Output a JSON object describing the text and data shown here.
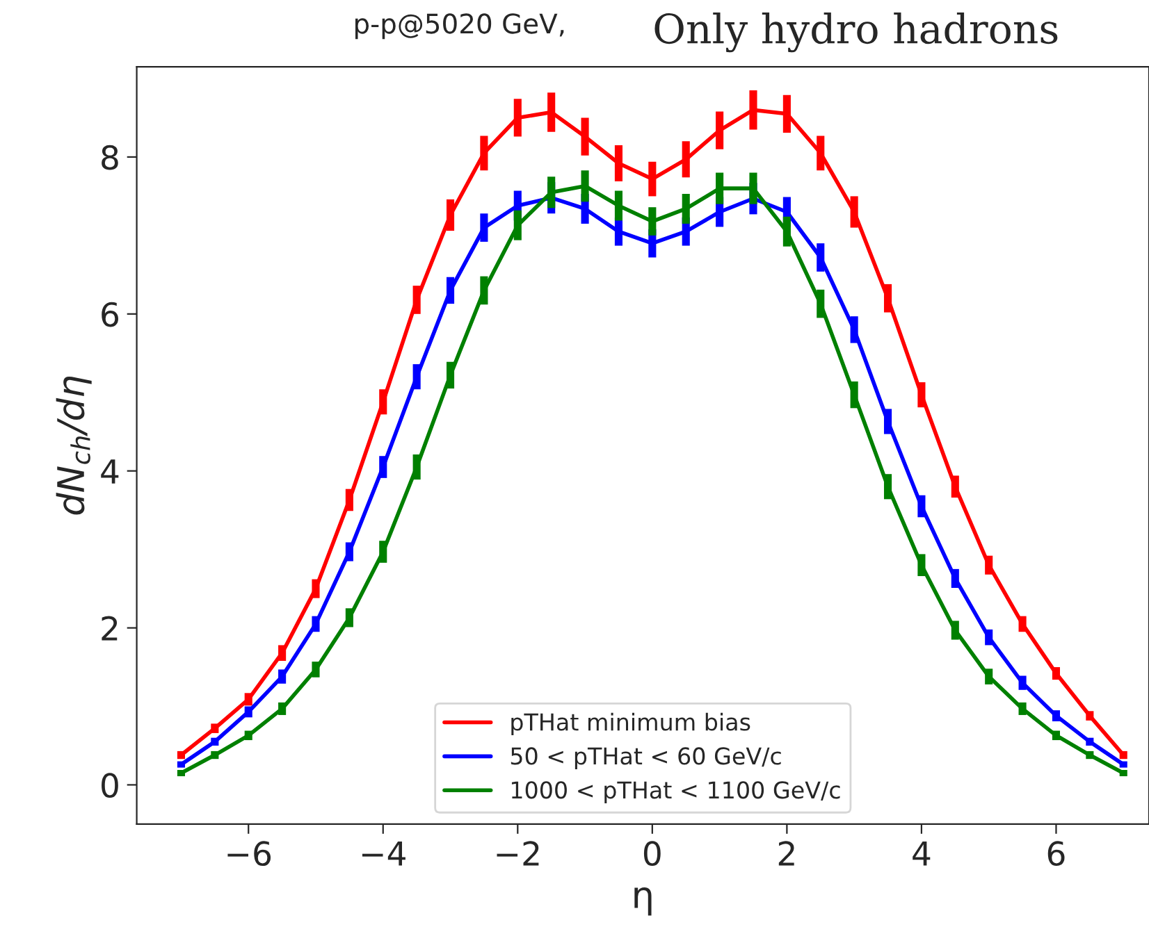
{
  "chart_data": {
    "type": "line",
    "title": "p-p@5020 GeV,",
    "annotations": [
      "Only hydro hadrons"
    ],
    "xlabel": "η",
    "ylabel": "dN$_{ch}$/dη",
    "x": [
      -7,
      -6.5,
      -6,
      -5.5,
      -5,
      -4.5,
      -4,
      -3.5,
      -3,
      -2.5,
      -2,
      -1.5,
      -1,
      -0.5,
      0,
      0.5,
      1,
      1.5,
      2,
      2.5,
      3,
      3.5,
      4,
      4.5,
      5,
      5.5,
      6,
      6.5,
      7
    ],
    "series": [
      {
        "name": "pTHat minimum bias",
        "color": "#ff0000",
        "values": [
          0.38,
          0.72,
          1.09,
          1.68,
          2.5,
          3.63,
          4.88,
          6.18,
          7.26,
          8.05,
          8.5,
          8.57,
          8.26,
          7.92,
          7.72,
          7.97,
          8.34,
          8.6,
          8.55,
          8.05,
          7.3,
          6.2,
          4.97,
          3.8,
          2.8,
          2.05,
          1.42,
          0.88,
          0.38
        ],
        "errors": [
          0.05,
          0.06,
          0.08,
          0.1,
          0.12,
          0.14,
          0.16,
          0.18,
          0.2,
          0.22,
          0.24,
          0.25,
          0.24,
          0.23,
          0.22,
          0.23,
          0.24,
          0.25,
          0.24,
          0.22,
          0.2,
          0.18,
          0.16,
          0.14,
          0.12,
          0.1,
          0.08,
          0.06,
          0.05
        ]
      },
      {
        "name": "50 < pTHat < 60 GeV/c",
        "color": "#0000ff",
        "values": [
          0.26,
          0.55,
          0.93,
          1.38,
          2.05,
          2.97,
          4.05,
          5.2,
          6.3,
          7.1,
          7.38,
          7.48,
          7.34,
          7.05,
          6.9,
          7.05,
          7.3,
          7.47,
          7.3,
          6.72,
          5.8,
          4.63,
          3.55,
          2.63,
          1.88,
          1.3,
          0.88,
          0.55,
          0.26
        ],
        "errors": [
          0.04,
          0.05,
          0.07,
          0.09,
          0.1,
          0.12,
          0.14,
          0.16,
          0.17,
          0.18,
          0.19,
          0.2,
          0.19,
          0.18,
          0.18,
          0.18,
          0.19,
          0.2,
          0.19,
          0.18,
          0.17,
          0.16,
          0.14,
          0.12,
          0.1,
          0.09,
          0.07,
          0.05,
          0.04
        ]
      },
      {
        "name": "1000 < pTHat < 1100 GeV/c",
        "color": "#008000",
        "values": [
          0.15,
          0.38,
          0.63,
          0.97,
          1.47,
          2.13,
          2.97,
          4.05,
          5.22,
          6.3,
          7.13,
          7.55,
          7.63,
          7.38,
          7.18,
          7.34,
          7.6,
          7.6,
          7.05,
          6.13,
          4.97,
          3.8,
          2.8,
          1.97,
          1.38,
          0.97,
          0.63,
          0.38,
          0.15
        ],
        "errors": [
          0.04,
          0.05,
          0.06,
          0.08,
          0.1,
          0.12,
          0.14,
          0.16,
          0.17,
          0.18,
          0.19,
          0.2,
          0.2,
          0.19,
          0.18,
          0.19,
          0.2,
          0.2,
          0.19,
          0.18,
          0.17,
          0.16,
          0.14,
          0.12,
          0.1,
          0.08,
          0.06,
          0.05,
          0.04
        ]
      }
    ],
    "xlim": [
      -7.66,
      7.38
    ],
    "ylim": [
      -0.5,
      9.15
    ],
    "xticks": [
      {
        "value": -6,
        "label": "−6"
      },
      {
        "value": -4,
        "label": "−4"
      },
      {
        "value": -2,
        "label": "−2"
      },
      0,
      2,
      4,
      6
    ],
    "yticks": [
      0,
      2,
      4,
      6,
      8
    ],
    "grid": false,
    "legend": "bottom",
    "marker": "none",
    "line_style": "solid"
  }
}
